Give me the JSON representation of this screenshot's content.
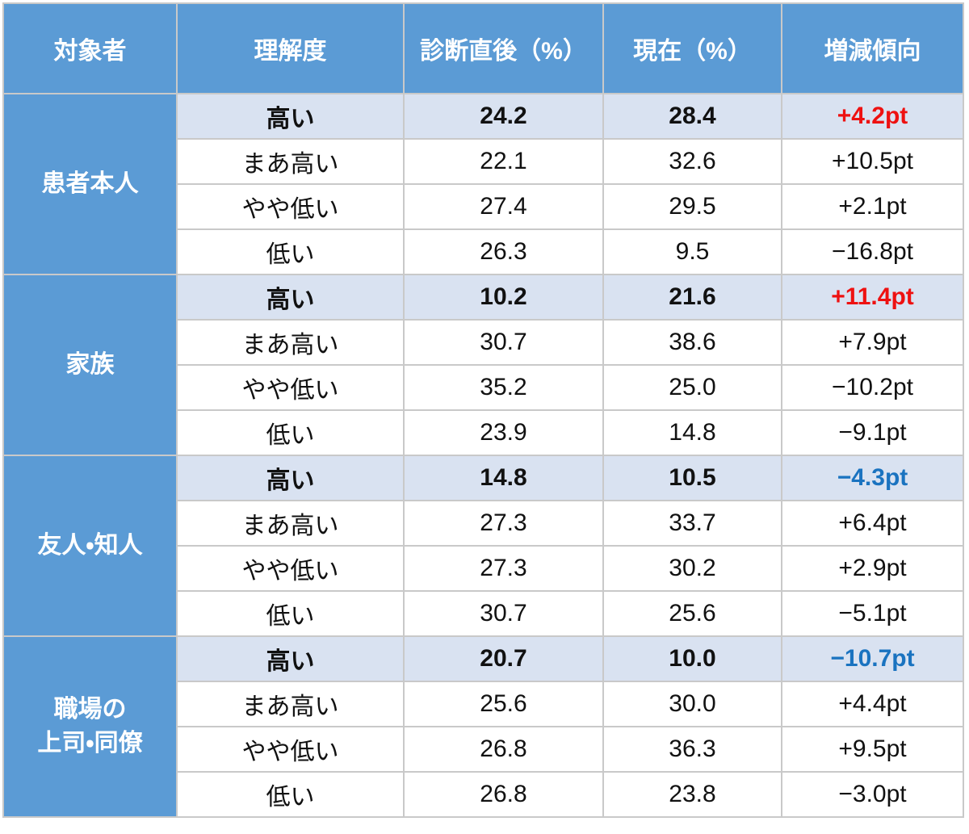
{
  "header": [
    "対象者",
    "理解度",
    "診断直後（%）",
    "現在（%）",
    "増減傾向"
  ],
  "groups": [
    {
      "label": "患者本人",
      "rows": [
        {
          "cells": [
            "高い",
            "24.2",
            "28.4",
            "+4.2pt"
          ],
          "emphasis": true,
          "trend_color": "#ee1111"
        },
        {
          "cells": [
            "まあ高い",
            "22.1",
            "32.6",
            "+10.5pt"
          ]
        },
        {
          "cells": [
            "やや低い",
            "27.4",
            "29.5",
            "+2.1pt"
          ]
        },
        {
          "cells": [
            "低い",
            "26.3",
            "9.5",
            "−16.8pt"
          ]
        }
      ]
    },
    {
      "label": "家族",
      "rows": [
        {
          "cells": [
            "高い",
            "10.2",
            "21.6",
            "+11.4pt"
          ],
          "emphasis": true,
          "trend_color": "#ee1111"
        },
        {
          "cells": [
            "まあ高い",
            "30.7",
            "38.6",
            "+7.9pt"
          ]
        },
        {
          "cells": [
            "やや低い",
            "35.2",
            "25.0",
            "−10.2pt"
          ]
        },
        {
          "cells": [
            "低い",
            "23.9",
            "14.8",
            "−9.1pt"
          ]
        }
      ]
    },
    {
      "label": "友人・知人",
      "rows": [
        {
          "cells": [
            "高い",
            "14.8",
            "10.5",
            "−4.3pt"
          ],
          "emphasis": true,
          "trend_color": "#1a73c0"
        },
        {
          "cells": [
            "まあ高い",
            "27.3",
            "33.7",
            "+6.4pt"
          ]
        },
        {
          "cells": [
            "やや低い",
            "27.3",
            "30.2",
            "+2.9pt"
          ]
        },
        {
          "cells": [
            "低い",
            "30.7",
            "25.6",
            "−5.1pt"
          ]
        }
      ]
    },
    {
      "label": "職場の\n上司・同僚",
      "rows": [
        {
          "cells": [
            "高い",
            "20.7",
            "10.0",
            "−10.7pt"
          ],
          "emphasis": true,
          "trend_color": "#1a73c0"
        },
        {
          "cells": [
            "まあ高い",
            "25.6",
            "30.0",
            "+4.4pt"
          ]
        },
        {
          "cells": [
            "やや低い",
            "26.8",
            "36.3",
            "+9.5pt"
          ]
        },
        {
          "cells": [
            "低い",
            "26.8",
            "23.8",
            "−3.0pt"
          ]
        }
      ]
    }
  ]
}
